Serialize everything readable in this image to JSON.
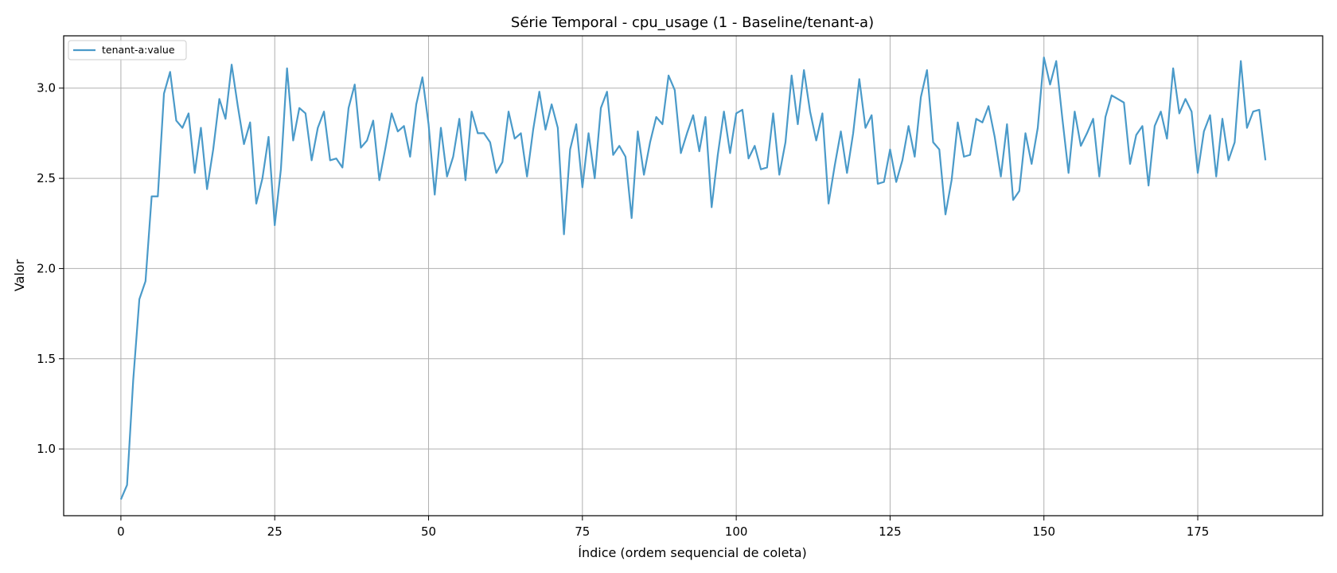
{
  "chart_data": {
    "type": "line",
    "title": "Série Temporal - cpu_usage (1 - Baseline/tenant-a)",
    "xlabel": "Índice (ordem sequencial de coleta)",
    "ylabel": "Valor",
    "xlim": [
      -9.3,
      195.3
    ],
    "ylim": [
      0.63,
      3.29
    ],
    "xticks": [
      0,
      25,
      50,
      75,
      100,
      125,
      150,
      175
    ],
    "xtick_labels": [
      "0",
      "25",
      "50",
      "75",
      "100",
      "125",
      "150",
      "175"
    ],
    "yticks": [
      1.0,
      1.5,
      2.0,
      2.5,
      3.0
    ],
    "ytick_labels": [
      "1.0",
      "1.5",
      "2.0",
      "2.5",
      "3.0"
    ],
    "grid": true,
    "legend_position": "top-left",
    "series": [
      {
        "name": "tenant-a:value",
        "color": "#4a9ac9",
        "x_start": 0,
        "x_step": 1,
        "values": [
          0.72,
          0.8,
          1.38,
          1.83,
          1.93,
          2.4,
          2.4,
          2.97,
          3.09,
          2.82,
          2.78,
          2.86,
          2.53,
          2.78,
          2.44,
          2.66,
          2.94,
          2.83,
          3.13,
          2.9,
          2.69,
          2.81,
          2.36,
          2.5,
          2.73,
          2.24,
          2.55,
          3.11,
          2.71,
          2.89,
          2.86,
          2.6,
          2.78,
          2.87,
          2.6,
          2.61,
          2.56,
          2.89,
          3.02,
          2.67,
          2.71,
          2.82,
          2.49,
          2.67,
          2.86,
          2.76,
          2.79,
          2.62,
          2.91,
          3.06,
          2.8,
          2.41,
          2.78,
          2.51,
          2.62,
          2.83,
          2.49,
          2.87,
          2.75,
          2.75,
          2.7,
          2.53,
          2.59,
          2.87,
          2.72,
          2.75,
          2.51,
          2.77,
          2.98,
          2.77,
          2.91,
          2.78,
          2.19,
          2.66,
          2.8,
          2.45,
          2.75,
          2.5,
          2.89,
          2.98,
          2.63,
          2.68,
          2.62,
          2.28,
          2.76,
          2.52,
          2.7,
          2.84,
          2.8,
          3.07,
          2.99,
          2.64,
          2.75,
          2.85,
          2.65,
          2.84,
          2.34,
          2.63,
          2.87,
          2.64,
          2.86,
          2.88,
          2.61,
          2.68,
          2.55,
          2.56,
          2.86,
          2.52,
          2.7,
          3.07,
          2.8,
          3.1,
          2.87,
          2.71,
          2.86,
          2.36,
          2.57,
          2.76,
          2.53,
          2.75,
          3.05,
          2.78,
          2.85,
          2.47,
          2.48,
          2.66,
          2.48,
          2.6,
          2.79,
          2.62,
          2.95,
          3.1,
          2.7,
          2.66,
          2.3,
          2.49,
          2.81,
          2.62,
          2.63,
          2.83,
          2.81,
          2.9,
          2.73,
          2.51,
          2.8,
          2.38,
          2.43,
          2.75,
          2.58,
          2.78,
          3.17,
          3.02,
          3.15,
          2.83,
          2.53,
          2.87,
          2.68,
          2.75,
          2.83,
          2.51,
          2.84,
          2.96,
          2.94,
          2.92,
          2.58,
          2.74,
          2.79,
          2.46,
          2.79,
          2.87,
          2.72,
          3.11,
          2.86,
          2.94,
          2.87,
          2.53,
          2.76,
          2.85,
          2.51,
          2.83,
          2.6,
          2.7,
          3.15,
          2.78,
          2.87,
          2.88,
          2.6
        ]
      }
    ]
  }
}
